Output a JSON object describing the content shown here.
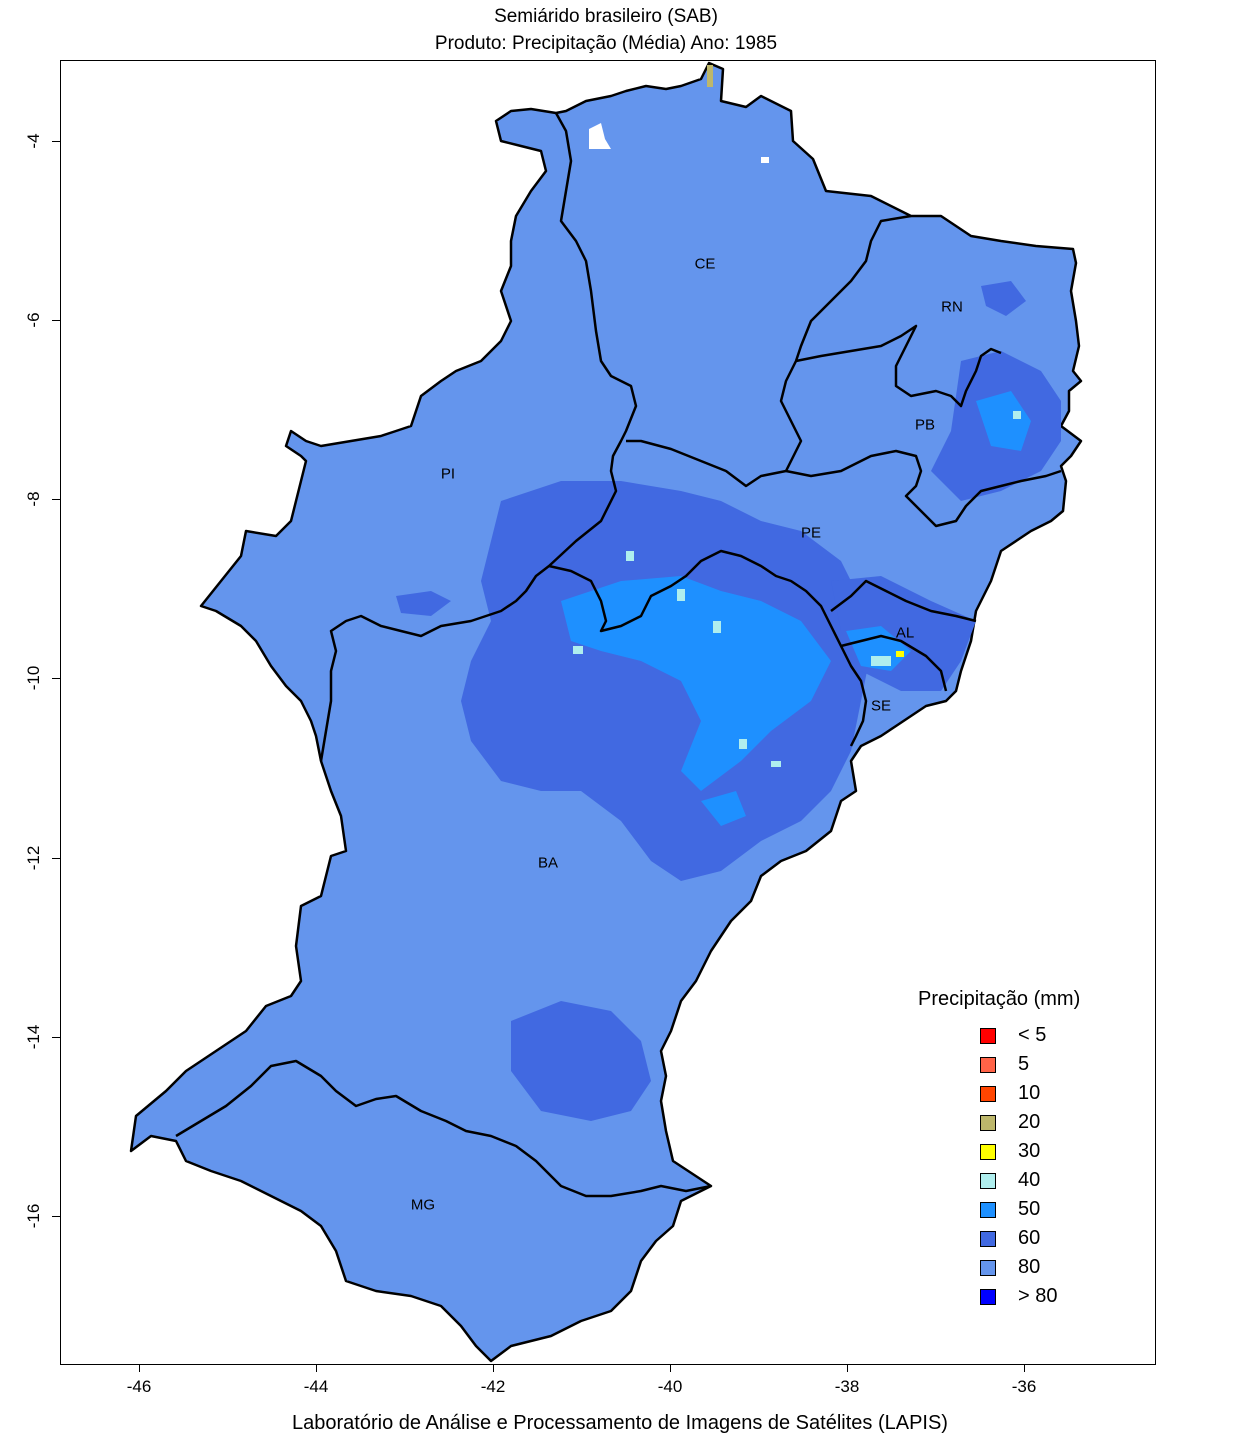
{
  "map": {
    "title_line1": "Semiárido brasileiro (SAB)",
    "title_line2": "Produto: Precipitação (Média)     Ano:  1985",
    "footer": "Laboratório de Análise e Processamento de Imagens de Satélites (LAPIS)",
    "x_ticks": [
      "-46",
      "-44",
      "-42",
      "-40",
      "-38",
      "-36"
    ],
    "y_ticks": [
      "-4",
      "-6",
      "-8",
      "-10",
      "-12",
      "-14",
      "-16"
    ],
    "state_labels": [
      "CE",
      "RN",
      "PB",
      "PI",
      "PE",
      "AL",
      "SE",
      "BA",
      "MG"
    ],
    "fill_color": "#6495ED",
    "darker_color": "#4169E1",
    "bright_color": "#1E90FF",
    "border_color": "#000000"
  },
  "legend": {
    "title": "Precipitação (mm)",
    "items": [
      {
        "label": "< 5",
        "color": "#FF0000"
      },
      {
        "label": "5",
        "color": "#FF6347"
      },
      {
        "label": "10",
        "color": "#FF4500"
      },
      {
        "label": "20",
        "color": "#BDB76B"
      },
      {
        "label": "30",
        "color": "#FFFF00"
      },
      {
        "label": "40",
        "color": "#AFEEEE"
      },
      {
        "label": "50",
        "color": "#1E90FF"
      },
      {
        "label": "60",
        "color": "#4169E1"
      },
      {
        "label": "80",
        "color": "#6495ED"
      },
      {
        "label": "> 80",
        "color": "#0000FF"
      }
    ]
  }
}
